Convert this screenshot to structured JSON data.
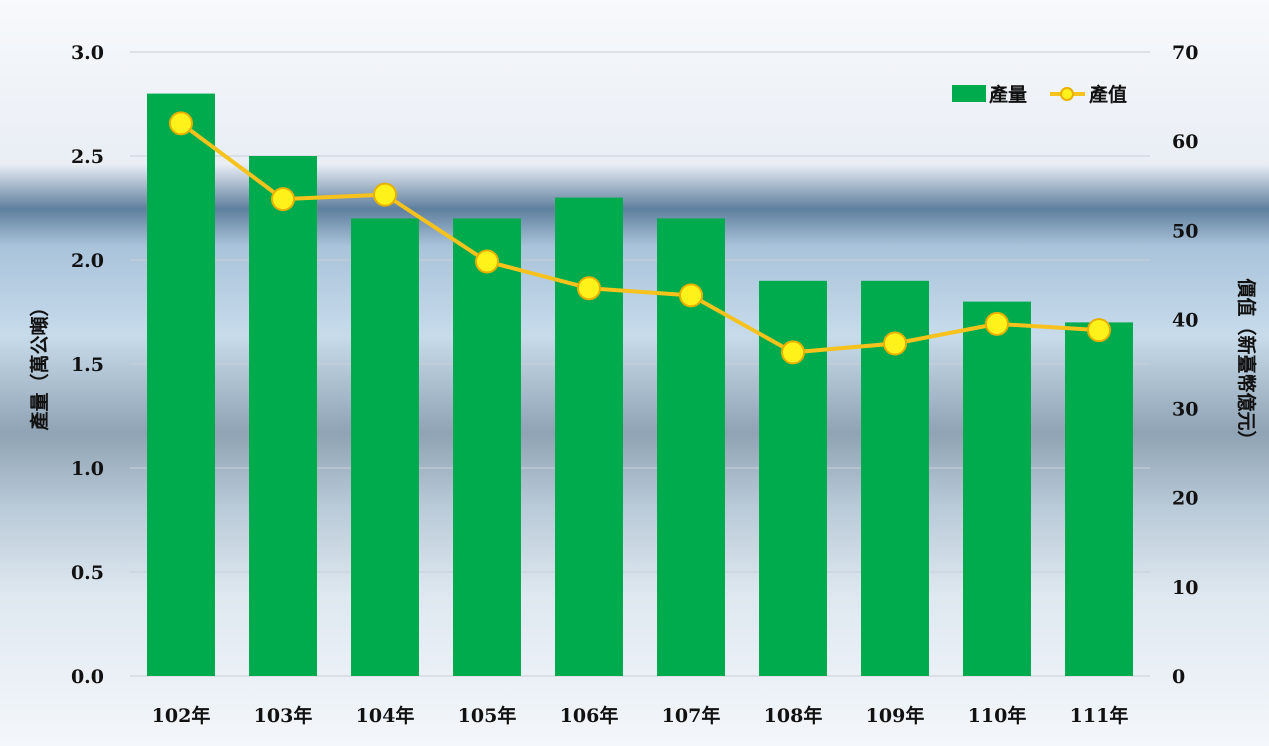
{
  "colors": {
    "bar": "#00AB4E",
    "line": "#F7C21B",
    "marker_fill": "#FFF21A",
    "marker_stroke": "#E8B000"
  },
  "chart_data": {
    "type": "bar",
    "categories": [
      "102年",
      "103年",
      "104年",
      "105年",
      "106年",
      "107年",
      "108年",
      "109年",
      "110年",
      "111年"
    ],
    "series": [
      {
        "name": "產量",
        "type": "bar",
        "axis": "left",
        "values": [
          2.8,
          2.5,
          2.2,
          2.2,
          2.3,
          2.2,
          1.9,
          1.9,
          1.8,
          1.7
        ]
      },
      {
        "name": "產值",
        "type": "line",
        "axis": "right",
        "values": [
          62,
          53.5,
          54,
          46.5,
          43.5,
          42.7,
          36.3,
          37.3,
          39.5,
          38.8
        ]
      }
    ],
    "ylabel": "產量（萬公噸）",
    "y2label": "價值（新臺幣億元）",
    "ylim": [
      0,
      3.0
    ],
    "y2lim": [
      0,
      70
    ],
    "yticks": [
      "0.0",
      "0.5",
      "1.0",
      "1.5",
      "2.0",
      "2.5",
      "3.0"
    ],
    "y2ticks": [
      "0",
      "10",
      "20",
      "30",
      "40",
      "50",
      "60",
      "70"
    ],
    "grid": true,
    "legend": "top-right"
  }
}
